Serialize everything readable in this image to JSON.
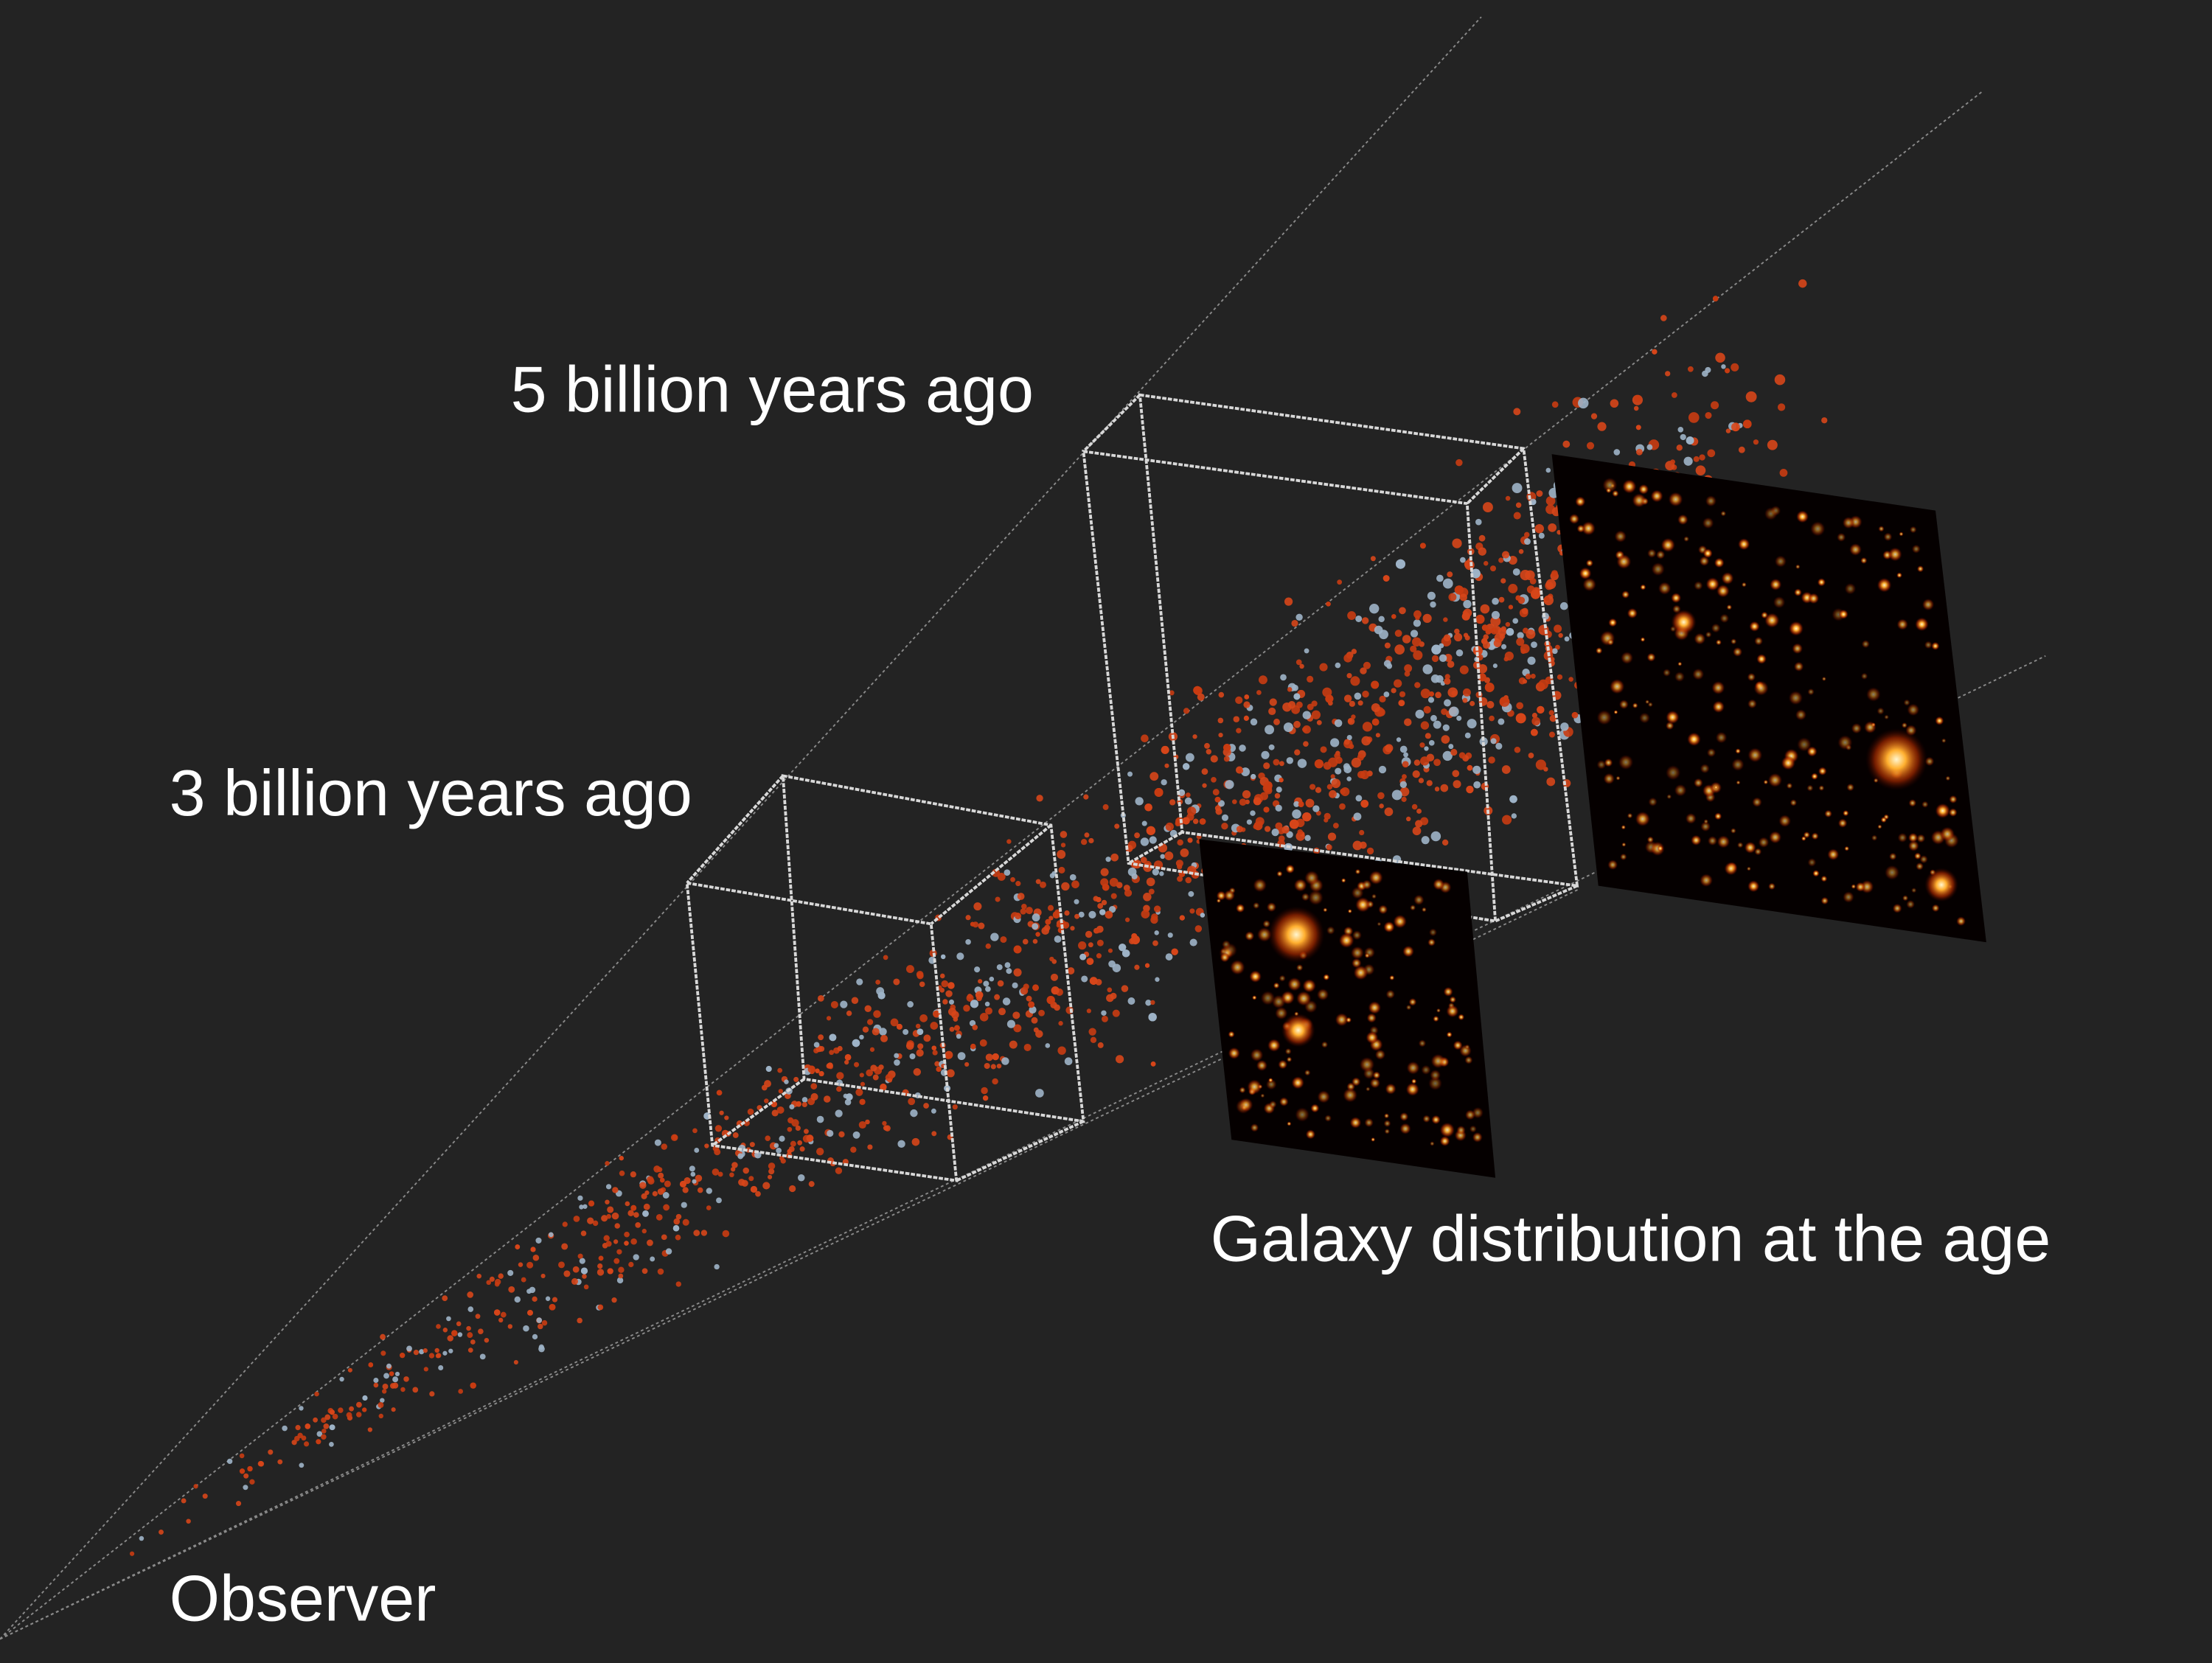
{
  "labels": {
    "far_epoch": "5 billion years ago",
    "near_epoch": "3 billion years ago",
    "observer": "Observer",
    "panels": "Galaxy distribution at the age"
  }
}
